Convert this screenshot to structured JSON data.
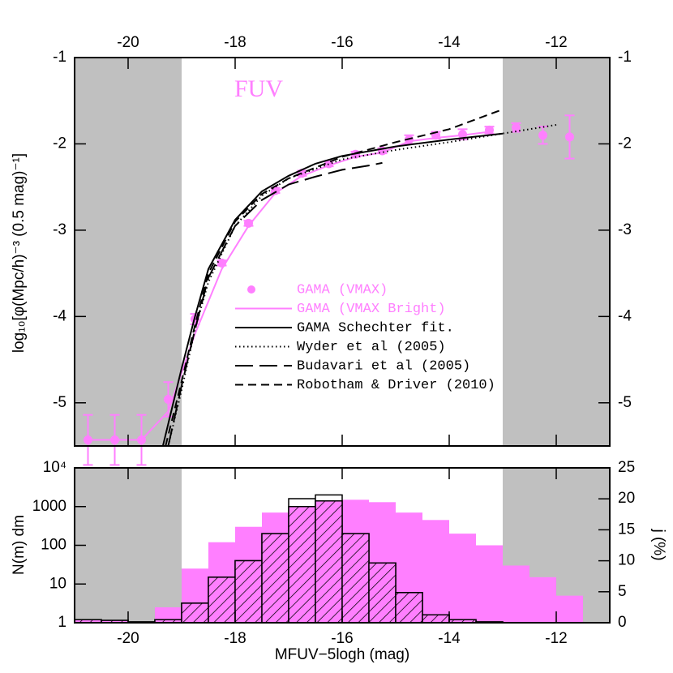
{
  "chart_data": [
    {
      "type": "line",
      "annotation": "FUV",
      "ylabel": "log₁₀[φ(Mpc/h)⁻³ (0.5 mag)⁻¹]",
      "xlim": [
        -21,
        -11
      ],
      "ylim": [
        -5.5,
        -1
      ],
      "xticks": [
        -20,
        -18,
        -16,
        -14,
        -12
      ],
      "yticks": [
        -1,
        -2,
        -3,
        -4,
        -5
      ],
      "shaded_ranges": [
        [
          -21,
          -19
        ],
        [
          -13,
          -11
        ]
      ],
      "shade_color": "#c0c0c0",
      "legend": "center",
      "series": [
        {
          "name": "GAMA (VMAX)",
          "color": "#ff7fff",
          "marker": "circle",
          "x": [
            -20.75,
            -20.25,
            -19.75,
            -19.25,
            -18.75,
            -18.25,
            -17.75,
            -17.25,
            -16.75,
            -16.25,
            -15.75,
            -15.25,
            -14.75,
            -14.25,
            -13.75,
            -13.25,
            -12.75,
            -12.25,
            -11.75
          ],
          "values": [
            -5.43,
            -5.43,
            -5.43,
            -4.96,
            -4.03,
            -3.38,
            -2.92,
            -2.54,
            -2.34,
            -2.23,
            -2.12,
            -2.08,
            -1.95,
            -1.9,
            -1.89,
            -1.84,
            -1.81,
            -1.9,
            -1.92
          ],
          "errors": [
            0.29,
            0.29,
            0.29,
            0.2,
            0.06,
            0.03,
            0.03,
            0.03,
            0.03,
            0.03,
            0.03,
            0.03,
            0.05,
            0.04,
            0.06,
            0.04,
            0.05,
            0.1,
            0.25
          ]
        },
        {
          "name": "GAMA (VMAX Bright)",
          "color": "#ff7fff",
          "dash": "solid",
          "x": [
            -20.75,
            -20.25,
            -19.75,
            -19.25,
            -18.75,
            -18.25,
            -17.75,
            -17.25,
            -16.75,
            -16.25,
            -15.75,
            -15.25,
            -14.75,
            -14.25,
            -13.75,
            -13.25
          ],
          "values": [
            -5.43,
            -5.43,
            -5.43,
            -5.1,
            -4.2,
            -3.45,
            -2.95,
            -2.57,
            -2.37,
            -2.25,
            -2.15,
            -2.1,
            -1.97,
            -1.93,
            -1.9,
            -1.86
          ]
        },
        {
          "name": "GAMA Schechter fit.",
          "color": "#000000",
          "dash": "solid",
          "x": [
            -19.35,
            -19.0,
            -18.75,
            -18.5,
            -18.0,
            -17.5,
            -17.0,
            -16.5,
            -16.0,
            -15.0,
            -14.0,
            -13.0
          ],
          "values": [
            -5.5,
            -4.6,
            -4.0,
            -3.45,
            -2.88,
            -2.55,
            -2.37,
            -2.23,
            -2.14,
            -2.03,
            -1.95,
            -1.88
          ]
        },
        {
          "name": "Wyder et al (2005)",
          "color": "#000000",
          "dash": "dotted",
          "x": [
            -19.25,
            -19.0,
            -18.75,
            -18.5,
            -18.0,
            -17.5,
            -17.0,
            -16.0,
            -15.0,
            -14.0,
            -13.0,
            -12.0
          ],
          "values": [
            -5.5,
            -4.85,
            -4.15,
            -3.6,
            -2.95,
            -2.6,
            -2.4,
            -2.18,
            -2.07,
            -1.98,
            -1.88,
            -1.78
          ]
        },
        {
          "name": "Budavari et al (2005)",
          "color": "#000000",
          "dash": "longdash",
          "x": [
            -19.25,
            -19.0,
            -18.75,
            -18.5,
            -18.0,
            -17.5,
            -17.0,
            -16.5,
            -16.0,
            -15.5,
            -15.25
          ],
          "values": [
            -5.5,
            -4.8,
            -4.15,
            -3.55,
            -2.95,
            -2.65,
            -2.47,
            -2.38,
            -2.3,
            -2.25,
            -2.22
          ]
        },
        {
          "name": "Robotham & Driver (2010)",
          "color": "#000000",
          "dash": "dash",
          "x": [
            -19.3,
            -19.0,
            -18.75,
            -18.5,
            -18.0,
            -17.5,
            -17.0,
            -16.0,
            -15.0,
            -14.0,
            -13.0
          ],
          "values": [
            -5.5,
            -4.75,
            -4.1,
            -3.5,
            -2.9,
            -2.58,
            -2.4,
            -2.15,
            -1.98,
            -1.83,
            -1.6
          ]
        }
      ]
    },
    {
      "type": "histogram",
      "xlabel": "MFUV−5logh (mag)",
      "ylabel": "N(m) dm",
      "y2label": "j (%)",
      "xlim": [
        -21,
        -11
      ],
      "ylim": [
        1,
        10000
      ],
      "ylog": true,
      "y2lim": [
        0,
        25
      ],
      "xticks": [
        -20,
        -18,
        -16,
        -14,
        -12
      ],
      "yticks": [
        1,
        10,
        100,
        1000,
        {
          "value": 10000,
          "label": "10⁴"
        }
      ],
      "y2ticks": [
        0,
        5,
        10,
        15,
        20,
        25
      ],
      "shaded_ranges": [
        [
          -21,
          -19
        ],
        [
          -13,
          -11
        ]
      ],
      "shade_color": "#c0c0c0",
      "series": [
        {
          "color": "#ff7fff",
          "fill": "solid",
          "bins": [
            -19.5,
            -19,
            -18.5,
            -18,
            -17.5,
            -17,
            -16.5,
            -16,
            -15.5,
            -15,
            -14.5,
            -14,
            -13.5,
            -13,
            -12.5,
            -12,
            -11.5
          ],
          "values": [
            2.5,
            25,
            120,
            300,
            700,
            1000,
            1500,
            1500,
            1300,
            700,
            450,
            200,
            100,
            30,
            15,
            5
          ]
        },
        {
          "color": "#000000",
          "fill": "open",
          "bins": [
            -21,
            -20.5,
            -20,
            -19.5,
            -19,
            -18.5,
            -18,
            -17.5,
            -17,
            -16.5,
            -16,
            -15.5,
            -15,
            -14.5,
            -14,
            -13.5,
            -13
          ],
          "values": [
            1.2,
            1.15,
            1.05,
            1.2,
            3.2,
            15,
            40,
            200,
            1600,
            2000,
            200,
            35,
            6,
            1.6,
            1.2,
            1.05
          ]
        },
        {
          "color": "#000000",
          "fill": "hatch",
          "bins": [
            -21,
            -20.5,
            -20,
            -19.5,
            -19,
            -18.5,
            -18,
            -17.5,
            -17,
            -16.5,
            -16,
            -15.5,
            -15,
            -14.5,
            -14,
            -13.5,
            -13
          ],
          "values": [
            1.2,
            1.15,
            1.05,
            1.2,
            3.2,
            15,
            40,
            200,
            1000,
            1400,
            200,
            35,
            6,
            1.6,
            1.2,
            1.05
          ]
        }
      ]
    }
  ]
}
